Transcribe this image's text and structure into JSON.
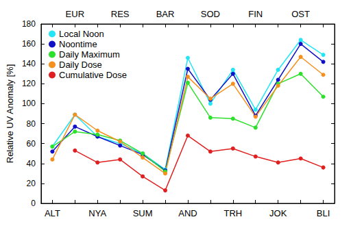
{
  "chart_data": {
    "type": "line",
    "ylabel": "Relative UV Anomaly [%]",
    "categories": [
      "ALT",
      "EUR",
      "NYA",
      "RES",
      "SUM",
      "BAR",
      "AND",
      "SOD",
      "TRH",
      "FIN",
      "JOK",
      "OST",
      "BLI"
    ],
    "series": [
      {
        "name": "Local Noon",
        "color": "#22e5f5",
        "values": [
          57,
          89,
          67,
          60,
          50,
          34,
          146,
          100,
          134,
          94,
          134,
          164,
          149
        ]
      },
      {
        "name": "Noontime",
        "color": "#1010c8",
        "values": [
          52,
          77,
          67,
          58,
          49,
          33,
          135,
          104,
          130,
          88,
          124,
          160,
          142
        ]
      },
      {
        "name": "Daily Maximum",
        "color": "#2ee02e",
        "values": [
          57,
          72,
          69,
          63,
          50,
          32,
          121,
          86,
          85,
          76,
          120,
          130,
          107
        ]
      },
      {
        "name": "Daily Dose",
        "color": "#f5901e",
        "values": [
          44,
          89,
          73,
          62,
          46,
          30,
          127,
          105,
          120,
          87,
          118,
          147,
          129
        ]
      },
      {
        "name": "Cumulative Dose",
        "color": "#e02020",
        "values": [
          null,
          53,
          41,
          44,
          27,
          13,
          68,
          52,
          55,
          47,
          41,
          45,
          36
        ]
      }
    ],
    "ylim": [
      0,
      180
    ],
    "yticks": [
      0,
      20,
      40,
      60,
      80,
      100,
      120,
      140,
      160,
      180
    ],
    "marker": "circle",
    "legend": "upper left",
    "grid": false
  }
}
